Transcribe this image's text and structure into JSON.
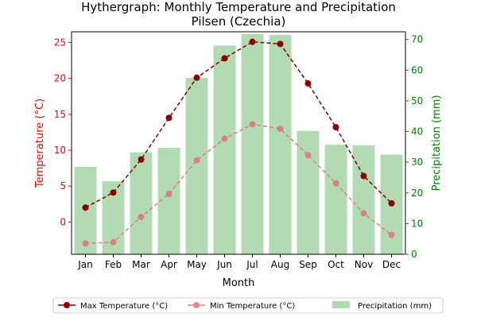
{
  "chart_data": {
    "type": "bar+line",
    "title_line1": "Hythergraph: Monthly Temperature and Precipitation",
    "title_line2": "Pilsen (Czechia)",
    "xlabel": "Month",
    "ylabel_left": "Temperature (°C)",
    "ylabel_right": "Precipitation (mm)",
    "categories": [
      "Jan",
      "Feb",
      "Mar",
      "Apr",
      "May",
      "Jun",
      "Jul",
      "Aug",
      "Sep",
      "Oct",
      "Nov",
      "Dec"
    ],
    "left_axis": {
      "ylim": [
        -4.5,
        26.5
      ],
      "ticks": [
        0,
        5,
        10,
        15,
        20,
        25
      ]
    },
    "right_axis": {
      "ylim": [
        0,
        72.5
      ],
      "ticks": [
        0,
        10,
        20,
        30,
        40,
        50,
        60,
        70
      ]
    },
    "series": [
      {
        "name": "Max Temperature (°C)",
        "axis": "left",
        "kind": "line",
        "color": "#8b0000",
        "values": [
          2.0,
          4.1,
          8.7,
          14.5,
          20.1,
          22.8,
          25.1,
          24.8,
          19.3,
          13.2,
          6.4,
          2.6
        ]
      },
      {
        "name": "Min Temperature (°C)",
        "axis": "left",
        "kind": "line",
        "color": "#d98080",
        "values": [
          -3.0,
          -2.8,
          0.7,
          3.9,
          8.6,
          11.6,
          13.6,
          13.0,
          9.3,
          5.4,
          1.2,
          -1.8
        ]
      },
      {
        "name": "Precipitation (mm)",
        "axis": "right",
        "kind": "bar",
        "color": "#b2dbb4",
        "values": [
          28.5,
          23.8,
          33.2,
          34.7,
          57.5,
          68.0,
          71.8,
          71.5,
          40.2,
          35.7,
          35.5,
          32.5
        ]
      }
    ],
    "colors": {
      "left_axis": "#ff0000",
      "right_axis": "#008000"
    },
    "legend_placement": "bottom-center"
  }
}
